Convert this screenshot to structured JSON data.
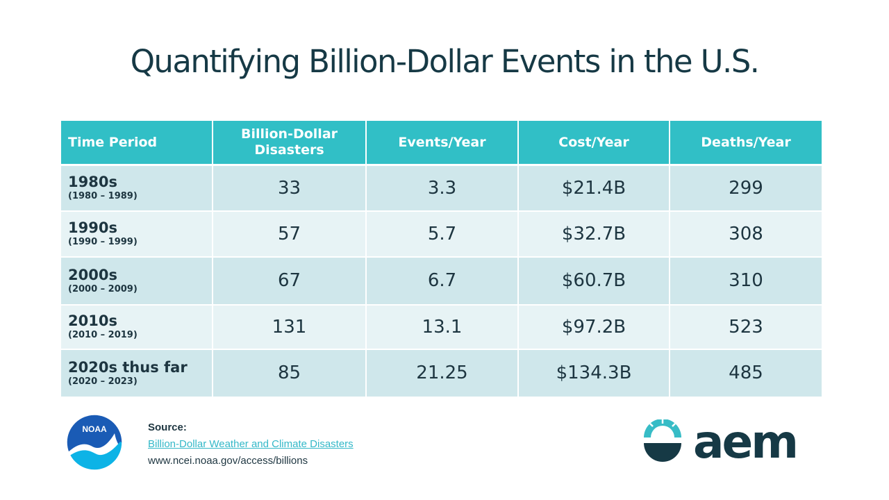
{
  "title": "Quantifying Billion-Dollar Events in the U.S.",
  "table": {
    "headers": [
      "Time Period",
      "Billion-Dollar Disasters",
      "Events/Year",
      "Cost/Year",
      "Deaths/Year"
    ],
    "rows": [
      {
        "period": "1980s",
        "range": "(1980 – 1989)",
        "disasters": "33",
        "events_per_year": "3.3",
        "cost_per_year": "$21.4B",
        "deaths_per_year": "299"
      },
      {
        "period": "1990s",
        "range": "(1990 – 1999)",
        "disasters": "57",
        "events_per_year": "5.7",
        "cost_per_year": "$32.7B",
        "deaths_per_year": "308"
      },
      {
        "period": "2000s",
        "range": "(2000 – 2009)",
        "disasters": "67",
        "events_per_year": "6.7",
        "cost_per_year": "$60.7B",
        "deaths_per_year": "310"
      },
      {
        "period": "2010s",
        "range": "(2010 – 2019)",
        "disasters": "131",
        "events_per_year": "13.1",
        "cost_per_year": "$97.2B",
        "deaths_per_year": "523"
      },
      {
        "period": "2020s thus far",
        "range": "(2020 – 2023)",
        "disasters": "85",
        "events_per_year": "21.25",
        "cost_per_year": "$134.3B",
        "deaths_per_year": "485"
      }
    ]
  },
  "source": {
    "label": "Source:",
    "link_text": "Billion-Dollar Weather and Climate Disasters",
    "url_text": "www.ncei.noaa.gov/access/billions"
  },
  "logos": {
    "noaa_text": "NOAA",
    "aem_text": "aem",
    "noaa_icon": "noaa-logo-icon",
    "aem_icon": "aem-logo-icon"
  },
  "colors": {
    "header": "#31bfc6",
    "row_dark": "#cfe7eb",
    "row_light": "#e7f3f5",
    "title": "#163945",
    "link": "#33b8c8",
    "aem_teal": "#37bcc6",
    "aem_dark": "#163945",
    "noaa_blue": "#1a5bb5"
  }
}
